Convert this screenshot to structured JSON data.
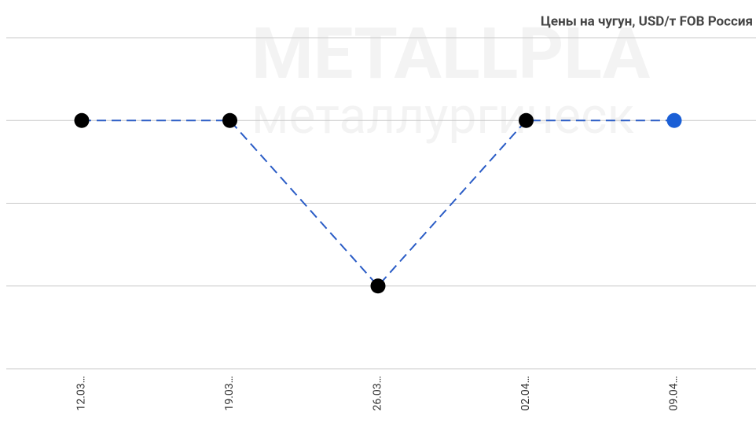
{
  "chart_data": {
    "type": "line",
    "title": "Цены на чугун, USD/т FOB Россия",
    "watermark": [
      "METALLPLA",
      "металлургическ"
    ],
    "categories": [
      "12.03…",
      "19.03…",
      "26.03…",
      "02.04…",
      "09.04…"
    ],
    "series": [
      {
        "name": "Цены на чугун",
        "color": "#2a5cc6",
        "values": [
          3,
          3,
          1,
          3,
          3
        ],
        "marker_colors": [
          "#000000",
          "#000000",
          "#000000",
          "#000000",
          "#1a5fd6"
        ]
      }
    ],
    "ylim": [
      0,
      4
    ],
    "yticks": [
      0,
      1,
      2,
      3,
      4
    ],
    "grid": true,
    "line_style": "dashed"
  }
}
